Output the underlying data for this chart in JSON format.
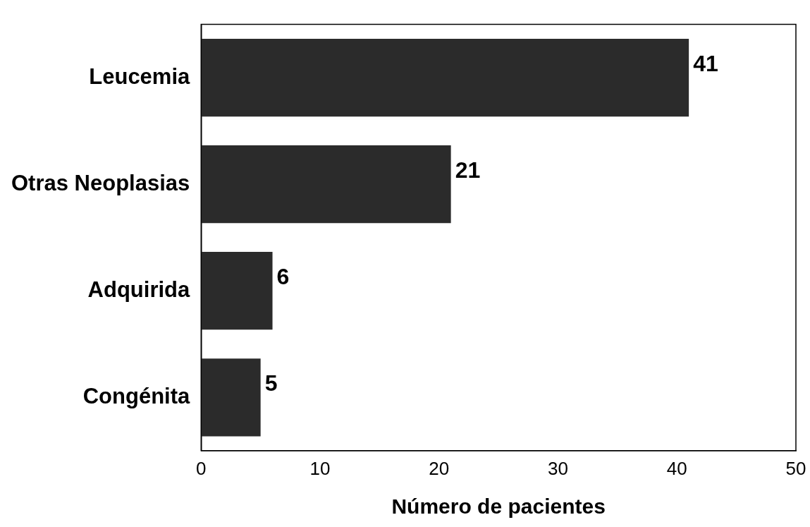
{
  "chart_data": {
    "type": "bar",
    "orientation": "horizontal",
    "xlabel": "Número de pacientes",
    "categories": [
      "Leucemia",
      "Otras Neoplasias",
      "Adquirida",
      "Congénita"
    ],
    "values": [
      41,
      21,
      6,
      5
    ],
    "color": "#2b2b2b",
    "xlim": [
      0,
      50
    ],
    "xticks": [
      0,
      10,
      20,
      30,
      40,
      50
    ],
    "grid": false,
    "legend": false,
    "data_labels": true
  }
}
